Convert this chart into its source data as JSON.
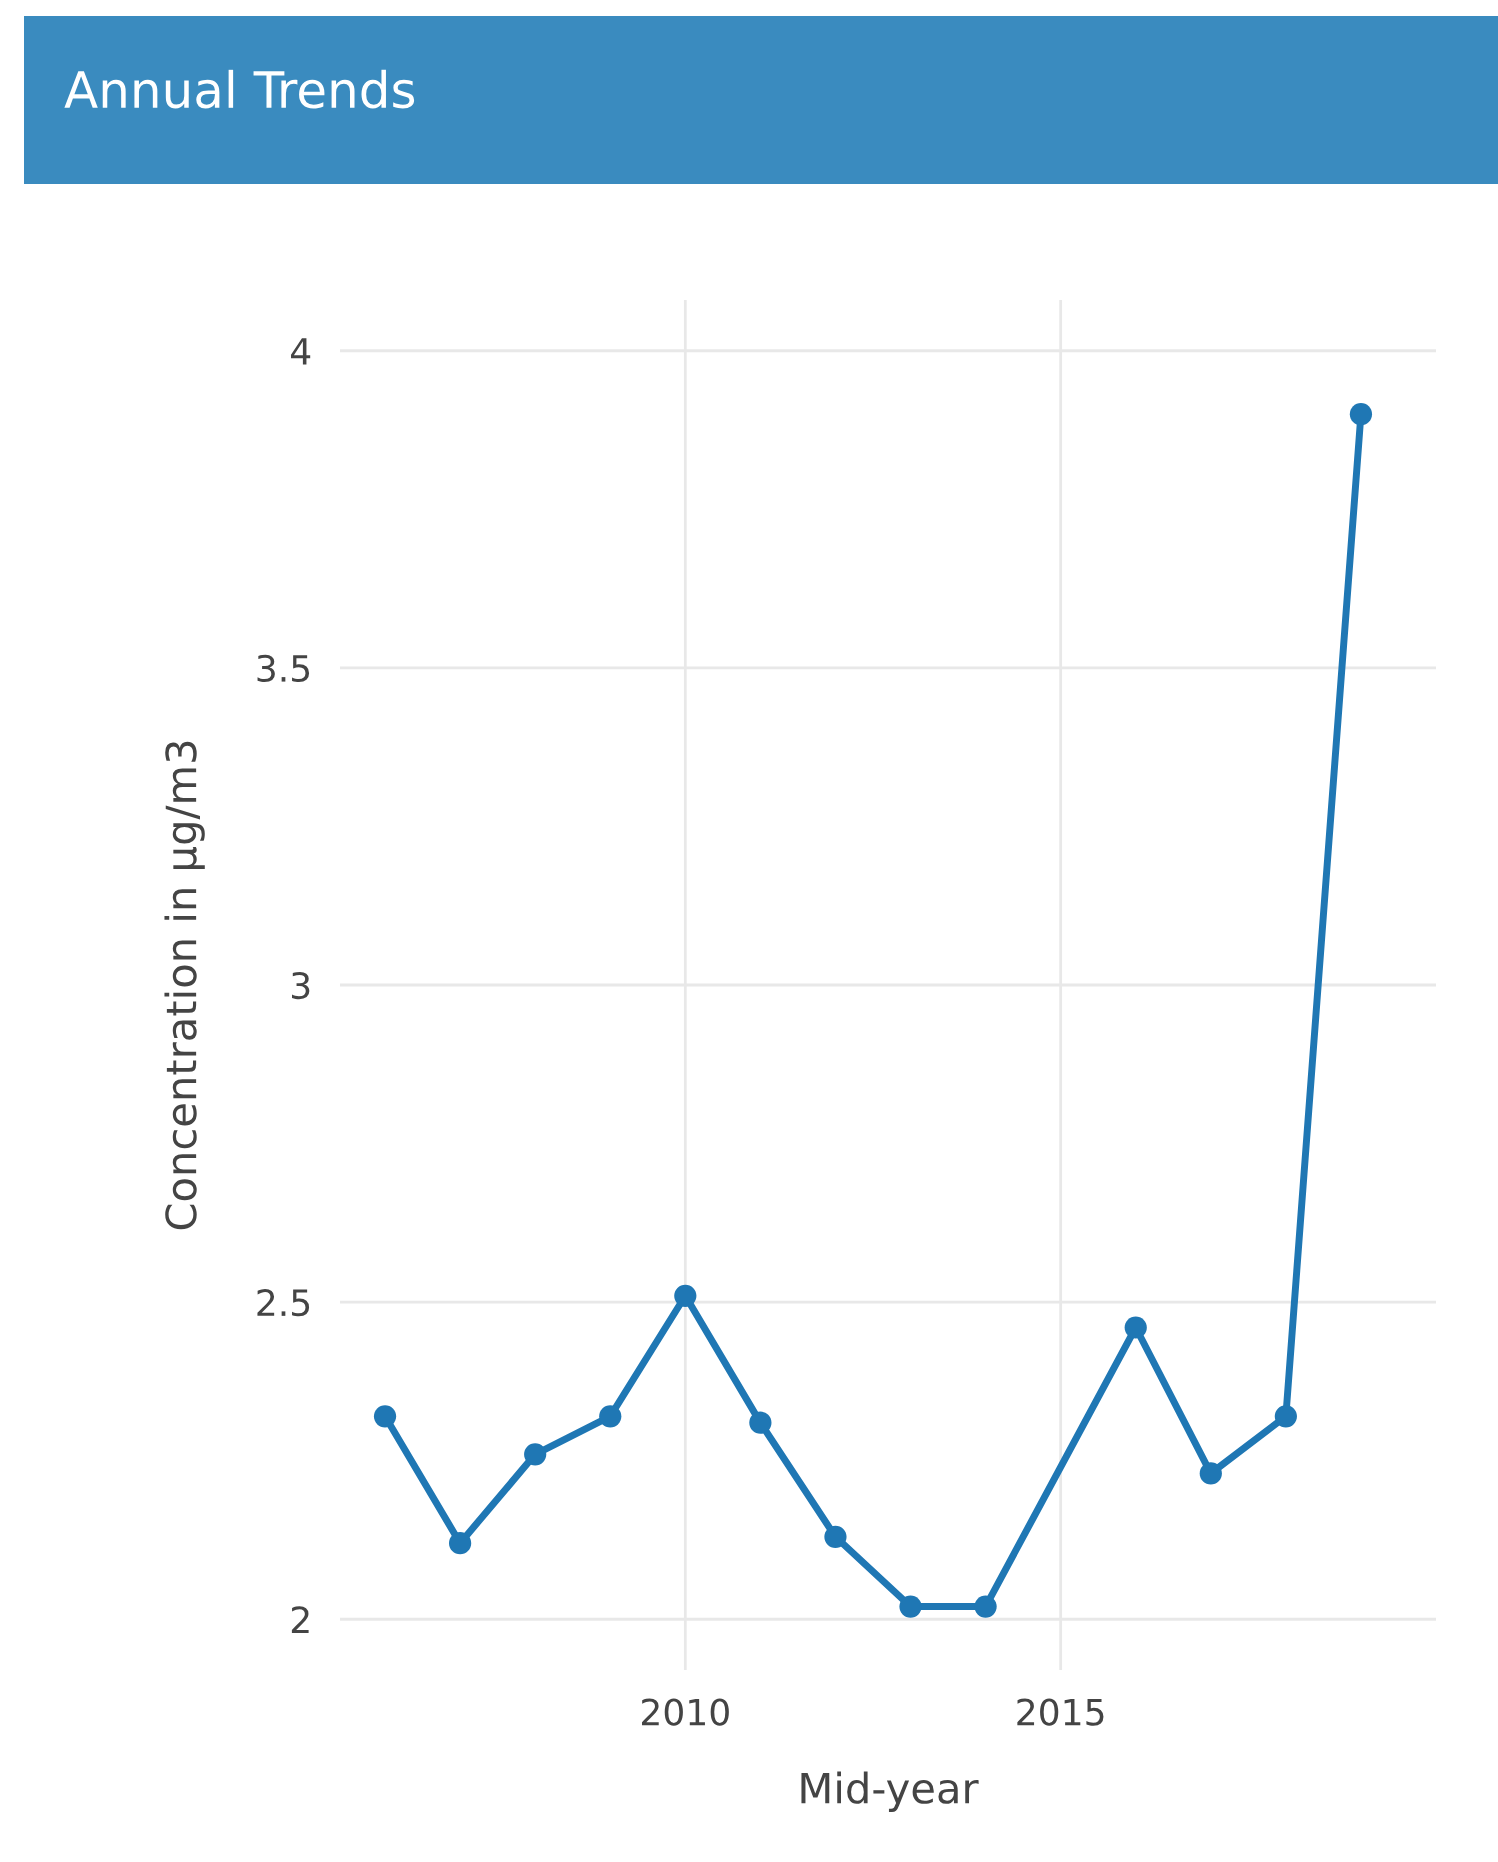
{
  "chart_data": {
    "type": "line",
    "title": "Annual Trends",
    "xlabel": "Mid-year",
    "ylabel": "Concentration in µg/m3",
    "x": [
      2006,
      2007,
      2008,
      2009,
      2010,
      2011,
      2012,
      2013,
      2014,
      2016,
      2017,
      2018,
      2019
    ],
    "series": [
      {
        "color": "#1f77b4",
        "values": [
          2.32,
          2.12,
          2.26,
          2.32,
          2.51,
          2.31,
          2.13,
          2.02,
          2.02,
          2.46,
          2.23,
          2.32,
          3.9
        ]
      }
    ],
    "xlim": [
      2005.4,
      2020
    ],
    "xticks": [
      2010,
      2015
    ],
    "ylim": [
      1.92,
      4.08
    ],
    "yticks": [
      2,
      2.5,
      3,
      3.5,
      4
    ],
    "grid": true,
    "marker": "circle",
    "line_style": "solid"
  }
}
